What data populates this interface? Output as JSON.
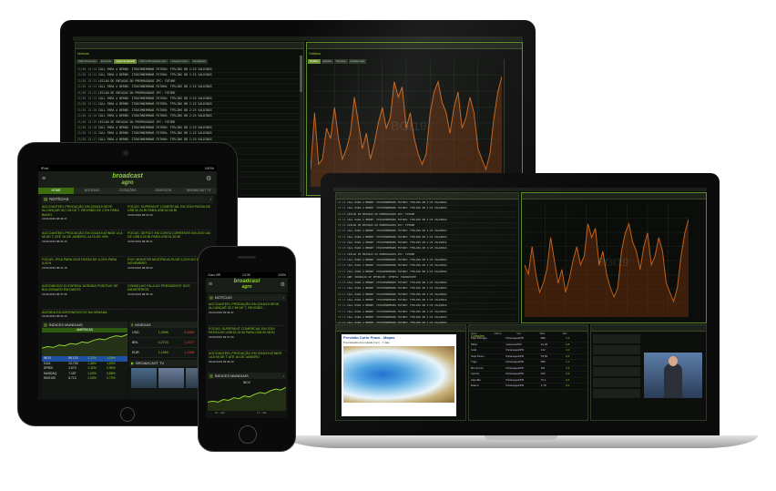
{
  "brand": {
    "name": "broadcast",
    "sub": "agro",
    "color": "#8ed12c"
  },
  "desktop": {
    "panel_left_title": "Notícias",
    "panel_right_title": "Gráficos",
    "tabs": [
      "Mais Recentes",
      "Exportar",
      "Agência Estado",
      "Última Broadcast Agro",
      "Imagens Agro",
      "Destaques"
    ],
    "chart_tabs": [
      "Gráfico",
      "Estudo",
      "Período",
      "Indicadores"
    ],
    "news_rows": [
      {
        "date": "21/01",
        "time": "15:24",
        "text": "CALL PARA A BERNE: ITOUCHNERMANS FUTURO: FTRLINS DB 2:25 VALDINGS"
      },
      {
        "date": "21/01",
        "time": "15:24",
        "text": "CALL PARA A BERNE: ITOUCHNERMANS FUTURO: FTRLINS DB 2:25 VALDINGS"
      },
      {
        "date": "21/01",
        "time": "15:23",
        "text": "LEILAO DE ENTAXAS DO PRERROGADOS IPC: FUTURE"
      },
      {
        "date": "21/01",
        "time": "15:23",
        "text": "CALL PARA A BERNE: ITOUCHNERMANS FUTURO: FTRLINS DB 2:25 VALDINGS"
      },
      {
        "date": "21/01",
        "time": "15:22",
        "text": "LEILAO DE ENTAXAS DO PRERROGADOS IPC: FUTURE"
      },
      {
        "date": "21/01",
        "time": "15:22",
        "text": "CALL PARA A BERNE: ITOUCHNERMANS FUTURO: FTRLINS DB 2:25 VALDINGS"
      },
      {
        "date": "21/01",
        "time": "15:21",
        "text": "CALL PARA A BERNE: ITOUCHNERMANS FUTURO: FTRLINS DB 2:25 VALDINGS"
      },
      {
        "date": "21/01",
        "time": "15:20",
        "text": "CALL PARA A BERNE: ITOUCHNERMANS FUTURO: FTRLINS DB 2:25 VALDINGS"
      },
      {
        "date": "21/01",
        "time": "15:20",
        "text": "CALL PARA A BERNE: ITOUCHNERMANS FUTURO: FTRLINS DB 2:25 VALDINGS"
      },
      {
        "date": "21/01",
        "time": "15:19",
        "text": "LEILAO DE ENTAXAS DO PRERROGADOS IPC: FUTURE"
      },
      {
        "date": "21/01",
        "time": "15:18",
        "text": "CALL PARA A BERNE: ITOUCHNERMANS FUTURO: FTRLINS DB 2:25 VALDINGS"
      },
      {
        "date": "21/01",
        "time": "15:18",
        "text": "CALL PARA A BERNE: ITOUCHNERMANS FUTURO: FTRLINS DB 2:25 VALDINGS"
      },
      {
        "date": "21/01",
        "time": "15:17",
        "text": "CALL PARA A BERNE: ITOUCHNERMANS FUTURO: FTRLINS DB 2:25 VALDINGS"
      },
      {
        "date": "21/01",
        "time": "15:16",
        "text": "ANP: PRODUCAO DE PETROLEO: OFERTA: TRANSPORTE"
      },
      {
        "date": "21/01",
        "time": "15:16",
        "text": "CALL PARA A BERNE: ITOUCHNERMANS FUTURO: FTRLINS DB 2:25 VALDINGS"
      },
      {
        "date": "21/01",
        "time": "15:15",
        "text": "CALL PARA A BERNE: ITOUCHNERMANS FUTURO: FTRLINS DB 2:25 VALDINGS"
      },
      {
        "date": "21/01",
        "time": "15:14",
        "text": "CALL PARA A BERNE: ITOUCHNERMANS FUTURO: FTRLINS DB 2:25 VALDINGS"
      },
      {
        "date": "21/01",
        "time": "15:13",
        "text": "CALL PARA A BERNE: ITOUCHNERMANS FUTURO: FTRLINS DB 2:25 VALDINGS"
      },
      {
        "date": "21/01",
        "time": "15:12",
        "text": "CALL PARA A BERNE: ITOUCHNERMANS FUTURO: FTRLINS DB 2:25 VALDINGS"
      },
      {
        "date": "21/01",
        "time": "15:11",
        "text": "CALL PARA A BERNE: ITOUCHNERMANS FUTURO: FTRLINS DB 2:25 VALDINGS"
      },
      {
        "date": "21/01",
        "time": "15:10",
        "text": "CALL PARA A BERNE: ITOUCHNERMANS FUTURO: FTRLINS DB 2:25 VALDINGS"
      },
      {
        "date": "21/01",
        "time": "15:09",
        "text": "CALL PARA A BERNE: ITOUCHNERMANS FUTURO: FTRLINS DB 2:25 VALDINGS"
      },
      {
        "date": "21/01",
        "time": "15:08",
        "text": "CALL PARA A BERNE: ITOUCHNERMANS FUTURO: FTRLINS DB 2:25 VALDINGS"
      },
      {
        "date": "21/01",
        "time": "15:07",
        "text": "CALL PARA A BERNE: ITOUCHNERMANS FUTURO: FTRLINS DB 2:25 VALDINGS"
      }
    ],
    "chart_watermark": "BGI19",
    "chart_series": [
      6,
      28,
      8,
      10,
      22,
      18,
      30,
      18,
      10,
      14,
      20,
      34,
      24,
      14,
      20,
      10,
      16,
      24,
      30,
      22,
      26,
      40,
      34,
      38,
      22,
      28,
      18,
      12,
      8,
      12,
      28,
      36,
      40,
      32,
      28,
      20,
      30,
      36,
      22,
      26,
      34,
      28,
      14,
      10,
      6,
      12,
      26,
      36,
      42
    ]
  },
  "tablet": {
    "status_left": "iPad",
    "status_right": "100%",
    "nav_tabs": [
      "HOME",
      "NOTÍCIAS",
      "COTAÇÕES",
      "GRÁFICOS",
      "BROADCAST TV"
    ],
    "news_title": "NOTÍCIAS",
    "news": [
      {
        "text": "AGCOANTEEL PRODUÇÃO EM 2018/19 DEVE ALCANÇAR 30,7 Mi DE T, REVISÃO DE 2,5% PARA BAIXO",
        "time": "21/01/2019 08:49:47"
      },
      {
        "text": "FOCUS: SUPERÁVIT COMERCIAL EM 2019 PASSA DE US$ 52,24 BI PARA US$ 52,08 BI",
        "time": "21/01/2019 08:47:50"
      },
      {
        "text": "AGCOANTEEL PRODUÇÃO EM 2018/19 ATINGE 14,6 Mi DE T, ATÉ 16 DE JANEIRO, ALTA DE 49%",
        "time": "21/01/2019 08:46:43"
      },
      {
        "text": "FOCUS: DÉFICIT EM CONTA CORRENTE EM 2019 VAI DE US$ 5,00 BI PARA US$ 51,50 BI",
        "time": "21/01/2019 08:45:21"
      },
      {
        "text": "FOCUS: IPCA PARA 2019 PASSA DE 4,02% PARA 4,01%",
        "time": "21/01/2019 08:41:18"
      },
      {
        "text": "FGV: MONITOR MOSTRA ALTA DE 0,22% DO PIB EM NOVEMBRO",
        "time": "21/01/2019 08:39:00"
      },
      {
        "text": "AGRONEGÓCIO ESPERA 'AGENDA POSITIVA' DE BOLSONARO EM DAVOS",
        "time": "21/01/2019 08:37:05"
      },
      {
        "text": "CONSELHO FALA AO PRESIDENTE DOS MINISTÉRIOS",
        "time": "21/01/2019 08:35:19"
      },
      {
        "text": "AGENDA DO AGRONEGÓCIO NA SEMANA",
        "time": "21/01/2019 08:33:40"
      }
    ],
    "indices_title": "ÍNDICES MUNDIAIS",
    "indices_sub": "AMÉRICAS",
    "indices_chart_label": "IBOV",
    "indices": [
      {
        "name": "IBOV",
        "a": "96.133",
        "b": "1,22%",
        "c": "1,16%"
      },
      {
        "name": "DJIA",
        "a": "24.706",
        "b": "1,38%",
        "c": "1,00%"
      },
      {
        "name": "SP500",
        "a": "2.670",
        "b": "1,32%",
        "c": "0,96%"
      },
      {
        "name": "NASDAQ",
        "a": "7.157",
        "b": "1,03%",
        "c": "0,88%"
      },
      {
        "name": "NDX100",
        "a": "6.713",
        "b": "1,00%",
        "c": "0,72%"
      }
    ],
    "moedas_title": "MOEDAS",
    "moedas": [
      {
        "name": "USD",
        "a": "1,3998",
        "b": "5,2650"
      },
      {
        "name": "BRL",
        "a": "4,2715",
        "b": "1,1017"
      },
      {
        "name": "EUR",
        "a": "1,1364",
        "b": "1,1358"
      }
    ],
    "tv_title": "BROADCAST TV"
  },
  "phone": {
    "status_left": "Claro BR",
    "status_time": "14:35",
    "status_right": "100%",
    "news_title": "NOTÍCIAS",
    "news": [
      {
        "text": "AGCOANTEEL PRODUÇÃO EM 2018/19 DEVE ALCANÇAR 30,7 Mi DE T, REVISÃO...",
        "time": "21/01/2019 09:49:47"
      },
      {
        "text": "FOCUS: SUPERÁVIT COMERCIAL EM 2019 PASSA DE US$ 52,24 BI PARA US$ 52,08 BI",
        "time": "21/01/2019 09:47:50"
      },
      {
        "text": "AGCOANTEEL PRODUÇÃO EM 2018/19 ATINGE 14,6 Mi DE T ATÉ 16 DE JANEIRO",
        "time": "21/01/2019 09:46:43"
      }
    ],
    "indices_title": "ÍNDICES MUNDIAIS",
    "chart_label": "IBOV",
    "x_labels": [
      "10 - Jan",
      "17 - Jan"
    ]
  },
  "laptop": {
    "map_title": "Previsão Curto Prazo - Mapas",
    "map_subtitle": "Precipitação Acumulada (mm) - 7 dias",
    "quotes_title": "Cotações",
    "tv_title": "Broadcast TV",
    "table_headers": [
      "Ativo",
      "Último",
      "Var",
      "Máx",
      "Mín"
    ],
    "table_rows": [
      {
        "a": "Soja Chicago",
        "b": "Paranaguá/PR",
        "c": "890",
        "d": "1,2"
      },
      {
        "a": "Milho",
        "b": "Cascavel/PR",
        "c": "41,20",
        "d": "0,8"
      },
      {
        "a": "Café",
        "b": "Paranaguá/PR",
        "c": "412",
        "d": "1,0"
      },
      {
        "a": "Soja Fisico",
        "b": "Paranaguá/PR",
        "c": "79,50",
        "d": "0,5"
      },
      {
        "a": "Trigo",
        "b": "Paranaguá/PR",
        "c": "855",
        "d": "1,1"
      },
      {
        "a": "Boi Gordo",
        "b": "Paranaguá/PR",
        "c": "151",
        "d": "0,3"
      },
      {
        "a": "Açúcar",
        "b": "Paranaguá/PR",
        "c": "222",
        "d": "0,9"
      },
      {
        "a": "Algodão",
        "b": "Paranaguá/PR",
        "c": "72,1",
        "d": "0,4"
      },
      {
        "a": "Etanol",
        "b": "Paranaguá/PR",
        "c": "1,78",
        "d": "0,2"
      }
    ]
  }
}
